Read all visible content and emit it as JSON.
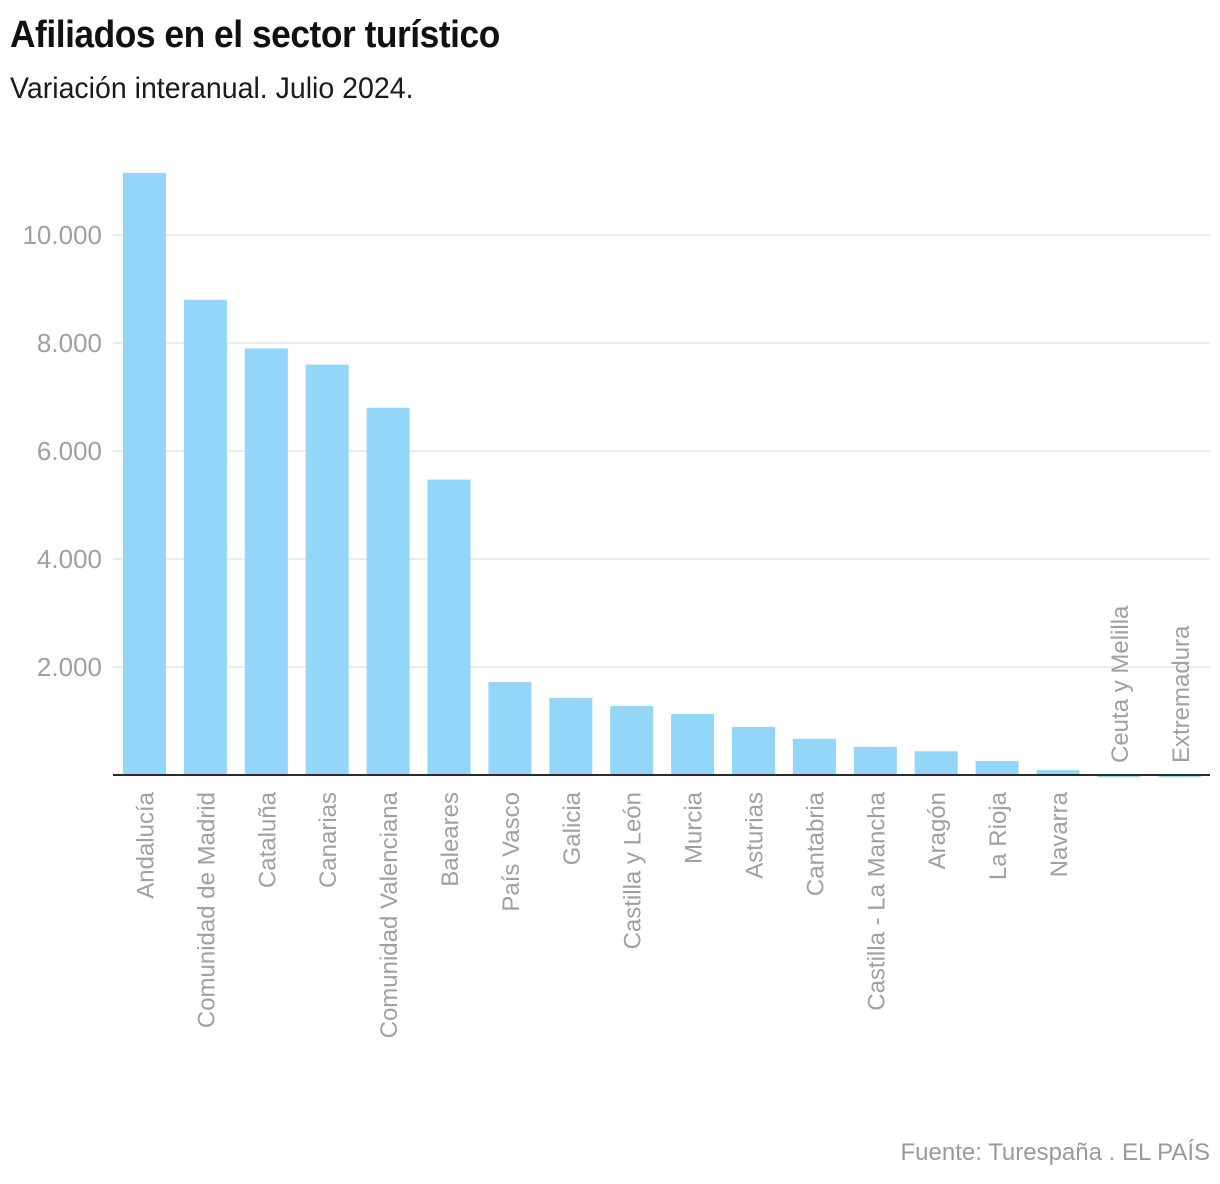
{
  "header": {
    "title": "Afiliados en el sector turístico",
    "subtitle": "Variación interanual. Julio 2024."
  },
  "footer": {
    "source": "Fuente: Turespaña . EL PAÍS"
  },
  "colors": {
    "bar": "#94d6f8",
    "grid": "#e5e5e5",
    "axis": "#2b2b2b",
    "tick_text": "#a0a0a0"
  },
  "chart_data": {
    "type": "bar",
    "title": "Afiliados en el sector turístico",
    "subtitle": "Variación interanual. Julio 2024.",
    "xlabel": "",
    "ylabel": "",
    "categories": [
      "Andalucía",
      "Comunidad de Madrid",
      "Cataluña",
      "Canarias",
      "Comunidad Valenciana",
      "Baleares",
      "País Vasco",
      "Galicia",
      "Castilla y León",
      "Murcia",
      "Asturias",
      "Cantabria",
      "Castilla - La Mancha",
      "Aragón",
      "La Rioja",
      "Navarra",
      "Ceuta y Melilla",
      "Extremadura"
    ],
    "values": [
      11150,
      8800,
      7900,
      7600,
      6800,
      5470,
      1720,
      1430,
      1280,
      1130,
      890,
      670,
      520,
      440,
      260,
      90,
      -15,
      -15
    ],
    "ylim": [
      0,
      11500
    ],
    "yticks": [
      2000,
      4000,
      6000,
      8000,
      10000
    ],
    "ytick_labels": [
      "2.000",
      "4.000",
      "6.000",
      "8.000",
      "10.000"
    ],
    "grid": true,
    "label_orientation": "vertical",
    "source": "Fuente: Turespaña . EL PAÍS"
  }
}
